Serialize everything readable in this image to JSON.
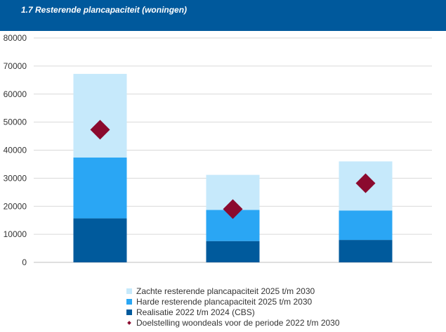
{
  "header": {
    "title": "1.7 Resterende plancapaciteit (woningen)"
  },
  "colors": {
    "header_bg": "#00599c",
    "realisatie": "#005a9c",
    "harde": "#2aa6f4",
    "zachte": "#c6e9fb",
    "doelstelling": "#8b0a2e",
    "grid": "#d9d9d9"
  },
  "chart_data": {
    "type": "bar",
    "stacked": true,
    "categories": [
      "",
      "",
      ""
    ],
    "series": [
      {
        "name": "Realisatie 2022 t/m 2024 (CBS)",
        "values": [
          15700,
          7600,
          8000
        ]
      },
      {
        "name": "Harde resterende plancapaciteit 2025 t/m 2030",
        "values": [
          21700,
          11100,
          10500
        ]
      },
      {
        "name": "Zachte resterende plancapaciteit 2025 t/m 2030",
        "values": [
          29800,
          12500,
          17500
        ]
      }
    ],
    "markers": {
      "name": "Doelstelling woondeals voor de periode 2022 t/m 2030",
      "values": [
        47300,
        19000,
        28200
      ]
    },
    "yticks": [
      "80000",
      "70000",
      "60000",
      "50000",
      "40000",
      "30000",
      "20000",
      "10000",
      "0"
    ],
    "ylim": [
      0,
      80000
    ],
    "grid": true,
    "legend_position": "bottom",
    "legend": [
      "Zachte resterende plancapaciteit 2025 t/m 2030",
      "Harde resterende plancapaciteit 2025 t/m 2030",
      "Realisatie 2022 t/m 2024 (CBS)",
      "Doelstelling woondeals voor de periode 2022 t/m 2030"
    ]
  }
}
